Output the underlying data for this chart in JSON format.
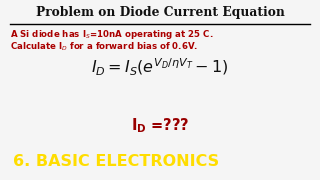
{
  "title": "Problem on Diode Current Equation",
  "sub1": "A Si diode has I$_S$=10nA operating at 25 C.",
  "sub2": "Calculate I$_D$ for a forward bias of 0.6V.",
  "equation": "$I_D = I_S \\left( e^{V_D/\\eta V_T} - 1 \\right)$",
  "answer": "$\\mathbf{I_D}$ =???",
  "footer": "6. BASIC ELECTRONICS",
  "bg_color": "#f5f5f5",
  "footer_bg": "#000000",
  "footer_text_color": "#ffdd00",
  "title_color": "#111111",
  "subtitle_color": "#aa0000",
  "equation_color": "#111111",
  "answer_color": "#990000",
  "title_fontsize": 8.8,
  "sub_fontsize": 6.2,
  "eq_fontsize": 11.5,
  "ans_fontsize": 10.5,
  "footer_fontsize": 11.5
}
